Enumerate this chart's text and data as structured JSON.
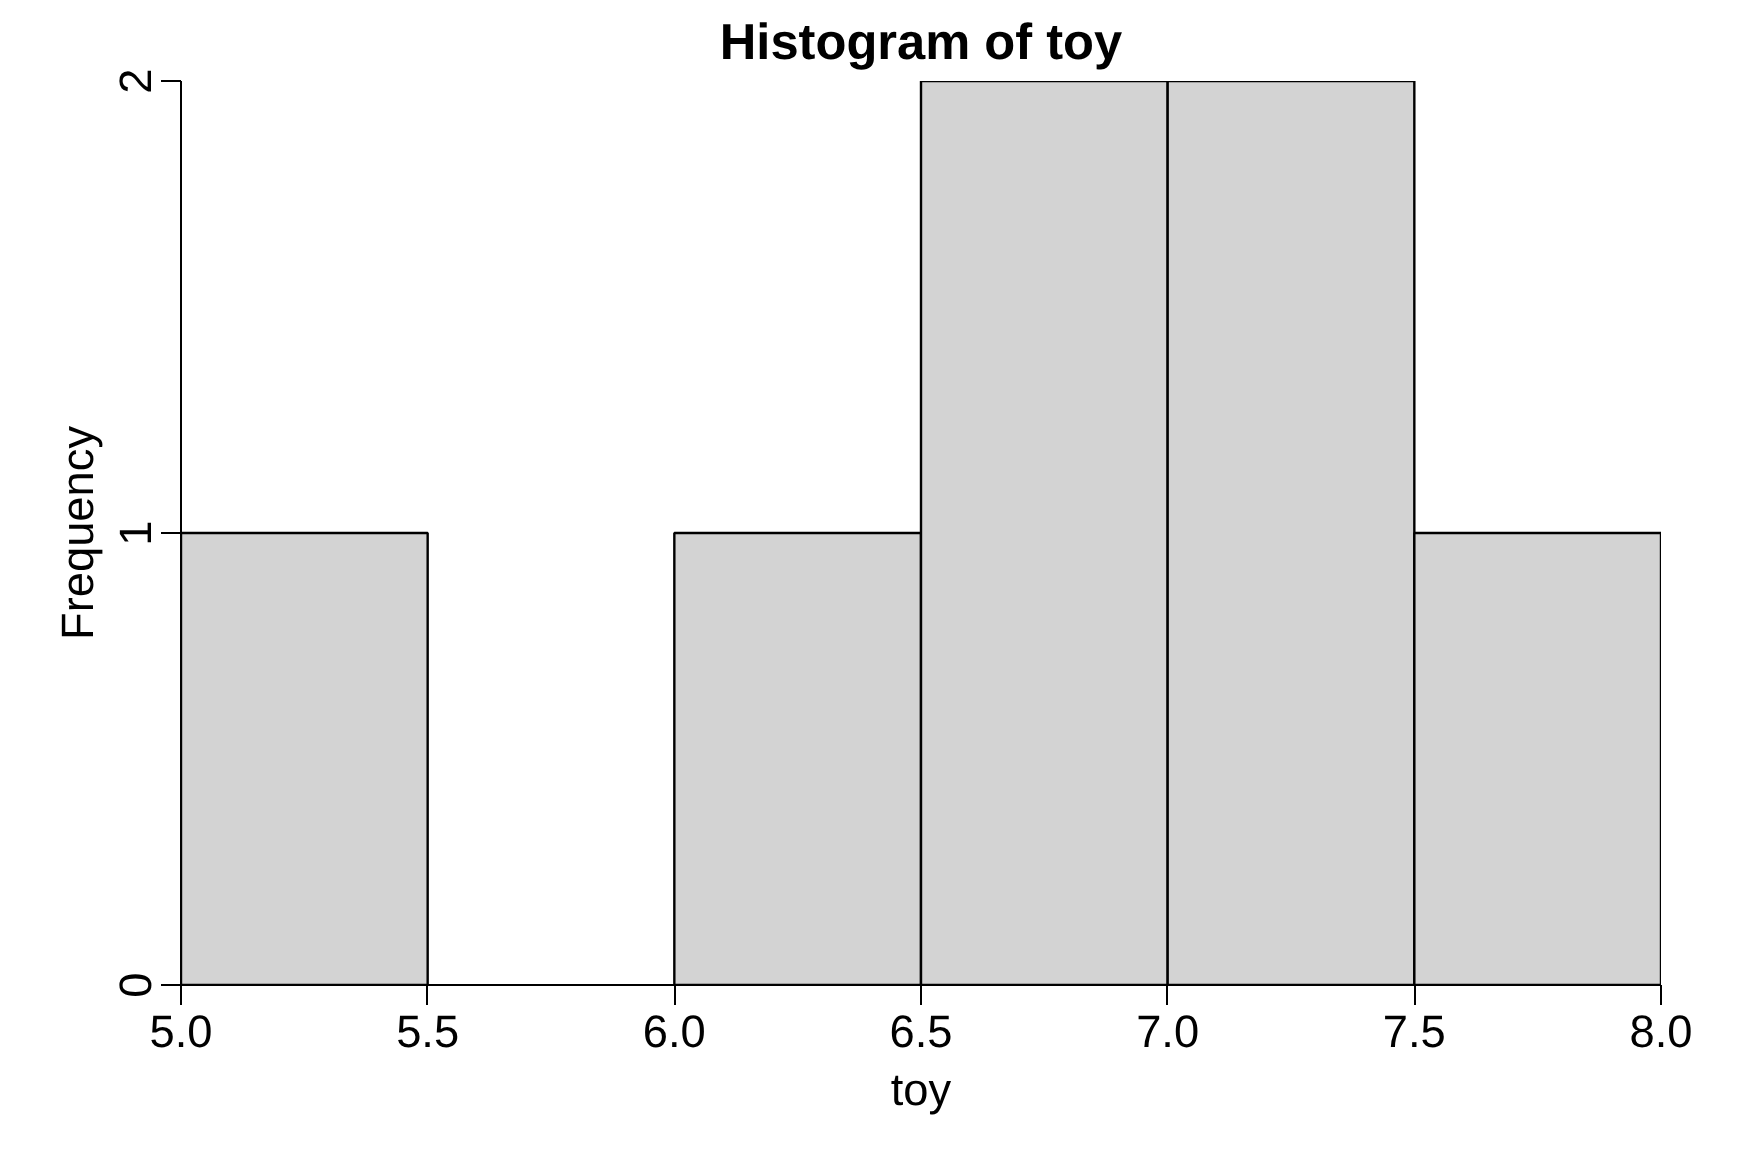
{
  "chart_data": {
    "type": "histogram",
    "title": "Histogram of toy",
    "xlabel": "toy",
    "ylabel": "Frequency",
    "bins": [
      5.0,
      5.5,
      6.0,
      6.5,
      7.0,
      7.5,
      8.0
    ],
    "values": [
      1,
      0,
      1,
      2,
      2,
      1
    ],
    "color": "#d3d3d3",
    "xlim": [
      5,
      8
    ],
    "ylim": [
      0,
      2
    ],
    "xticks": [
      {
        "value": 5,
        "label": "5.0"
      },
      {
        "value": 5.5,
        "label": "5.5"
      },
      {
        "value": 6,
        "label": "6.0"
      },
      {
        "value": 6.5,
        "label": "6.5"
      },
      {
        "value": 7,
        "label": "7.0"
      },
      {
        "value": 7.5,
        "label": "7.5"
      },
      {
        "value": 8,
        "label": "8.0"
      }
    ],
    "yticks": [
      0,
      1,
      2
    ],
    "grid": false
  }
}
